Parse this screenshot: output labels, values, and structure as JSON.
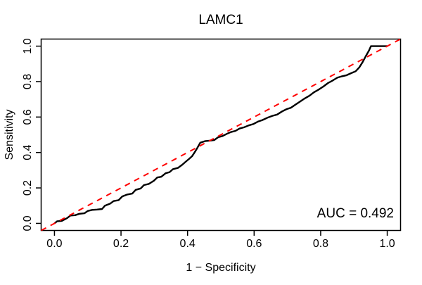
{
  "figure": {
    "background": "#ffffff",
    "curve_color": "#000000",
    "reference_color": "#FF0000"
  },
  "chart_data": {
    "type": "line",
    "title": "LAMC1",
    "xlabel": "1 − Specificity",
    "ylabel": "Sensitivity",
    "annotation": "AUC = 0.492",
    "auc": 0.492,
    "grid": false,
    "legend": null,
    "xlim": [
      -0.04,
      1.04
    ],
    "ylim": [
      -0.04,
      1.04
    ],
    "x_ticks": [
      "0.0",
      "0.2",
      "0.4",
      "0.6",
      "0.8",
      "1.0"
    ],
    "x_tick_values": [
      0,
      0.2,
      0.4,
      0.6,
      0.8,
      1.0
    ],
    "y_ticks": [
      "0.0",
      "0.2",
      "0.4",
      "0.6",
      "0.8",
      "1.0"
    ],
    "y_tick_values": [
      0,
      0.2,
      0.4,
      0.6,
      0.8,
      1.0
    ],
    "series": [
      {
        "name": "roc-curve",
        "label": "ROC curve",
        "color": "#000000",
        "dash": "solid",
        "width": 2.4,
        "points": [
          [
            0.0,
            0.0
          ],
          [
            0.008,
            0.012
          ],
          [
            0.022,
            0.014
          ],
          [
            0.038,
            0.03
          ],
          [
            0.048,
            0.044
          ],
          [
            0.062,
            0.046
          ],
          [
            0.075,
            0.054
          ],
          [
            0.09,
            0.057
          ],
          [
            0.1,
            0.07
          ],
          [
            0.113,
            0.076
          ],
          [
            0.128,
            0.078
          ],
          [
            0.143,
            0.081
          ],
          [
            0.152,
            0.1
          ],
          [
            0.168,
            0.112
          ],
          [
            0.178,
            0.126
          ],
          [
            0.193,
            0.131
          ],
          [
            0.204,
            0.152
          ],
          [
            0.219,
            0.163
          ],
          [
            0.234,
            0.168
          ],
          [
            0.244,
            0.189
          ],
          [
            0.259,
            0.197
          ],
          [
            0.269,
            0.216
          ],
          [
            0.284,
            0.223
          ],
          [
            0.299,
            0.241
          ],
          [
            0.309,
            0.259
          ],
          [
            0.321,
            0.263
          ],
          [
            0.334,
            0.283
          ],
          [
            0.346,
            0.289
          ],
          [
            0.356,
            0.306
          ],
          [
            0.371,
            0.313
          ],
          [
            0.384,
            0.331
          ],
          [
            0.394,
            0.347
          ],
          [
            0.404,
            0.363
          ],
          [
            0.414,
            0.38
          ],
          [
            0.421,
            0.4
          ],
          [
            0.43,
            0.428
          ],
          [
            0.438,
            0.455
          ],
          [
            0.452,
            0.464
          ],
          [
            0.468,
            0.467
          ],
          [
            0.48,
            0.47
          ],
          [
            0.492,
            0.486
          ],
          [
            0.505,
            0.493
          ],
          [
            0.518,
            0.505
          ],
          [
            0.53,
            0.515
          ],
          [
            0.544,
            0.522
          ],
          [
            0.556,
            0.535
          ],
          [
            0.57,
            0.542
          ],
          [
            0.584,
            0.553
          ],
          [
            0.597,
            0.56
          ],
          [
            0.611,
            0.574
          ],
          [
            0.625,
            0.583
          ],
          [
            0.64,
            0.596
          ],
          [
            0.655,
            0.607
          ],
          [
            0.669,
            0.614
          ],
          [
            0.684,
            0.632
          ],
          [
            0.698,
            0.645
          ],
          [
            0.71,
            0.652
          ],
          [
            0.724,
            0.67
          ],
          [
            0.738,
            0.687
          ],
          [
            0.752,
            0.705
          ],
          [
            0.766,
            0.72
          ],
          [
            0.78,
            0.74
          ],
          [
            0.794,
            0.755
          ],
          [
            0.808,
            0.772
          ],
          [
            0.822,
            0.792
          ],
          [
            0.836,
            0.806
          ],
          [
            0.85,
            0.822
          ],
          [
            0.864,
            0.83
          ],
          [
            0.878,
            0.836
          ],
          [
            0.892,
            0.848
          ],
          [
            0.905,
            0.858
          ],
          [
            0.916,
            0.88
          ],
          [
            0.926,
            0.91
          ],
          [
            0.936,
            0.945
          ],
          [
            0.945,
            0.975
          ],
          [
            0.951,
            1.0
          ],
          [
            1.0,
            1.0
          ]
        ]
      },
      {
        "name": "chance-diagonal",
        "label": "Reference line",
        "color": "#FF0000",
        "dash": "dashed",
        "width": 2,
        "points": [
          [
            -0.04,
            -0.04
          ],
          [
            1.04,
            1.04
          ]
        ]
      }
    ]
  }
}
